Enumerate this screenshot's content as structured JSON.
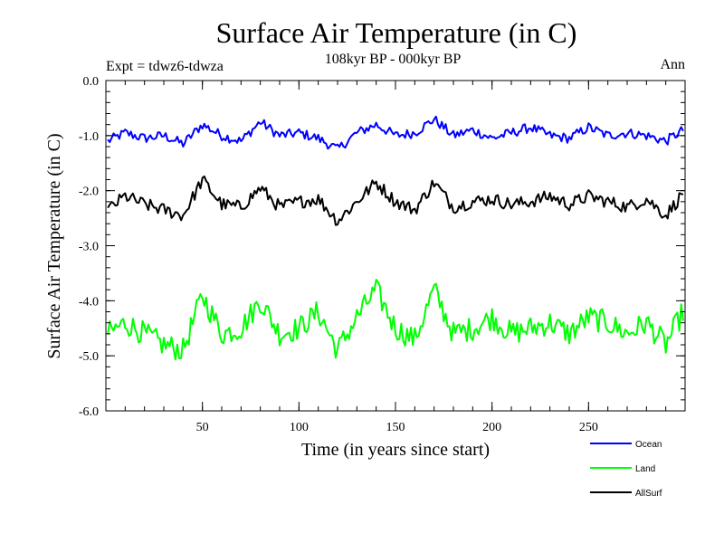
{
  "chart_data": {
    "type": "line",
    "title": "Surface Air Temperature (in C)",
    "subtitle": "108kyr BP - 000kyr BP",
    "experiment_label": "Expt = tdwz6-tdwza",
    "season_label": "Ann",
    "xlabel": "Time (in years since start)",
    "ylabel": "Surface Air Temperature (in C)",
    "xlim": [
      0,
      300
    ],
    "ylim": [
      -6.0,
      0.0
    ],
    "xticks": [
      50,
      100,
      150,
      200,
      250
    ],
    "xtick_labels": [
      "50",
      "100",
      "150",
      "200",
      "250"
    ],
    "yticks": [
      0.0,
      -1.0,
      -2.0,
      -3.0,
      -4.0,
      -5.0,
      -6.0
    ],
    "ytick_labels": [
      "0.0",
      "-1.0",
      "-2.0",
      "-3.0",
      "-4.0",
      "-5.0",
      "-6.0"
    ],
    "grid": false,
    "legend_position": "bottom-right",
    "series": [
      {
        "name": "Ocean",
        "color": "#0000ff",
        "x": [
          1,
          10,
          20,
          30,
          40,
          50,
          60,
          70,
          80,
          90,
          100,
          110,
          120,
          130,
          140,
          150,
          160,
          170,
          180,
          190,
          200,
          210,
          220,
          230,
          240,
          250,
          260,
          270,
          280,
          290,
          299
        ],
        "y": [
          -1.1,
          -0.95,
          -1.05,
          -1.0,
          -1.15,
          -0.8,
          -1.0,
          -1.1,
          -0.75,
          -1.0,
          -0.95,
          -1.05,
          -1.25,
          -0.95,
          -0.8,
          -1.0,
          -0.95,
          -0.7,
          -1.0,
          -0.9,
          -1.05,
          -0.95,
          -0.85,
          -1.0,
          -1.05,
          -0.85,
          -1.0,
          -0.95,
          -1.0,
          -1.1,
          -0.9
        ]
      },
      {
        "name": "Land",
        "color": "#00ff00",
        "x": [
          1,
          10,
          20,
          30,
          40,
          50,
          60,
          70,
          80,
          90,
          100,
          110,
          120,
          130,
          140,
          150,
          160,
          170,
          180,
          190,
          200,
          210,
          220,
          230,
          240,
          250,
          260,
          270,
          280,
          290,
          299
        ],
        "y": [
          -4.6,
          -4.4,
          -4.6,
          -4.8,
          -4.9,
          -3.9,
          -4.6,
          -4.5,
          -4.0,
          -4.6,
          -4.5,
          -4.2,
          -4.9,
          -4.3,
          -3.8,
          -4.5,
          -4.7,
          -3.8,
          -4.6,
          -4.5,
          -4.3,
          -4.6,
          -4.5,
          -4.4,
          -4.6,
          -4.3,
          -4.4,
          -4.6,
          -4.4,
          -4.8,
          -4.2
        ]
      },
      {
        "name": "AllSurf",
        "color": "#000000",
        "x": [
          1,
          10,
          20,
          30,
          40,
          50,
          60,
          70,
          80,
          90,
          100,
          110,
          120,
          130,
          140,
          150,
          160,
          170,
          180,
          190,
          200,
          210,
          220,
          230,
          240,
          250,
          260,
          270,
          280,
          290,
          299
        ],
        "y": [
          -2.35,
          -2.1,
          -2.25,
          -2.35,
          -2.45,
          -1.8,
          -2.25,
          -2.3,
          -1.95,
          -2.3,
          -2.2,
          -2.15,
          -2.55,
          -2.2,
          -1.85,
          -2.2,
          -2.35,
          -1.85,
          -2.3,
          -2.2,
          -2.15,
          -2.25,
          -2.2,
          -2.1,
          -2.25,
          -2.1,
          -2.2,
          -2.3,
          -2.15,
          -2.45,
          -2.05
        ]
      }
    ]
  }
}
